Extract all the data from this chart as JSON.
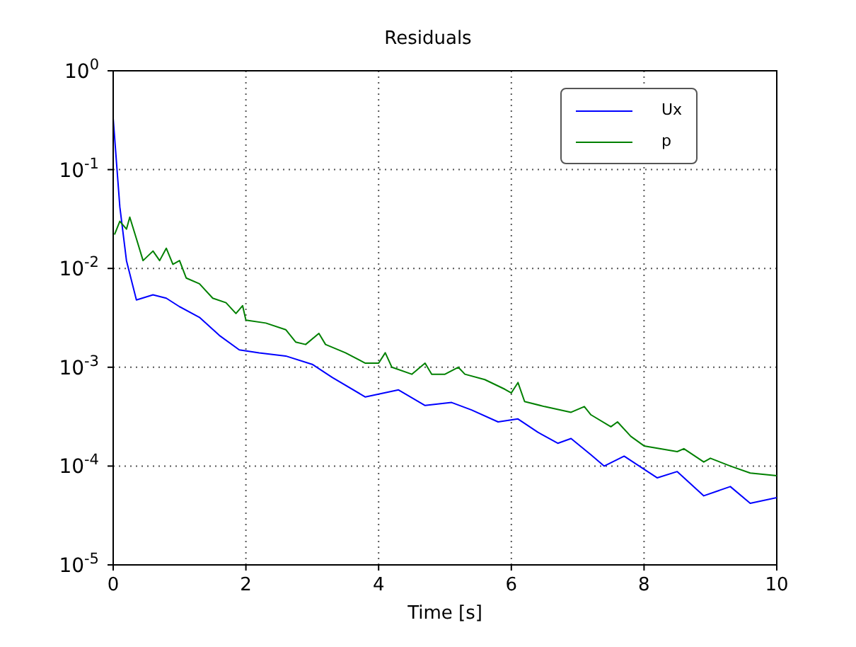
{
  "chart_data": {
    "type": "line",
    "title": "Residuals",
    "xlabel": "Time [s]",
    "log": "y",
    "grid": true,
    "legend": "top right",
    "xlim": [
      0,
      10
    ],
    "xticks": [
      0,
      2,
      4,
      6,
      8,
      10
    ],
    "ylim": [
      1e-05,
      1
    ],
    "yticks": [
      {
        "value": 1e-05,
        "label": "10$^{-5}$"
      },
      {
        "value": 0.0001,
        "label": "10$^{-4}$"
      },
      {
        "value": 0.001,
        "label": "10$^{-3}$"
      },
      {
        "value": 0.01,
        "label": "10$^{-2}$"
      },
      {
        "value": 0.1,
        "label": "10$^{-1}$"
      },
      {
        "value": 1,
        "label": "10$^{0}$"
      }
    ],
    "series": [
      {
        "name": "Ux",
        "color": "#0000ff",
        "x": [
          0,
          0.1,
          0.2,
          0.35,
          0.6,
          0.8,
          1.0,
          1.3,
          1.6,
          1.9,
          2.2,
          2.6,
          3.0,
          3.3,
          3.8,
          4.3,
          4.7,
          5.1,
          5.4,
          5.8,
          6.1,
          6.4,
          6.7,
          6.9,
          7.2,
          7.4,
          7.7,
          8.0,
          8.2,
          8.5,
          8.9,
          9.3,
          9.6,
          10
        ],
        "values": [
          0.33,
          0.042,
          0.012,
          0.0048,
          0.0054,
          0.005,
          0.0041,
          0.0032,
          0.0021,
          0.0015,
          0.0014,
          0.0013,
          0.00107,
          0.00079,
          0.0005,
          0.00059,
          0.00041,
          0.00044,
          0.00037,
          0.00028,
          0.0003,
          0.00022,
          0.00017,
          0.00019,
          0.00013,
          0.0001,
          0.000126,
          9.3e-05,
          7.6e-05,
          8.8e-05,
          5e-05,
          6.2e-05,
          4.2e-05,
          4.8e-05
        ]
      },
      {
        "name": "p",
        "color": "#008000",
        "x": [
          0.02,
          0.1,
          0.2,
          0.25,
          0.35,
          0.45,
          0.6,
          0.7,
          0.8,
          0.9,
          1.0,
          1.1,
          1.3,
          1.5,
          1.7,
          1.85,
          1.95,
          2.0,
          2.3,
          2.6,
          2.75,
          2.9,
          3.1,
          3.2,
          3.5,
          3.8,
          4.0,
          4.1,
          4.2,
          4.5,
          4.7,
          4.8,
          5.0,
          5.2,
          5.3,
          5.6,
          5.9,
          6.0,
          6.1,
          6.2,
          6.5,
          6.9,
          7.1,
          7.2,
          7.5,
          7.6,
          7.8,
          8.0,
          8.5,
          8.6,
          8.9,
          9.0,
          9.3,
          9.6,
          10
        ],
        "values": [
          0.022,
          0.03,
          0.025,
          0.033,
          0.02,
          0.012,
          0.015,
          0.012,
          0.016,
          0.011,
          0.012,
          0.008,
          0.007,
          0.005,
          0.0045,
          0.0035,
          0.0042,
          0.003,
          0.0028,
          0.0024,
          0.0018,
          0.0017,
          0.0022,
          0.0017,
          0.0014,
          0.0011,
          0.0011,
          0.0014,
          0.001,
          0.00085,
          0.0011,
          0.00085,
          0.00085,
          0.001,
          0.00085,
          0.00075,
          0.0006,
          0.00055,
          0.0007,
          0.00045,
          0.0004,
          0.00035,
          0.0004,
          0.00033,
          0.00025,
          0.00028,
          0.0002,
          0.00016,
          0.00014,
          0.00015,
          0.00011,
          0.00012,
          0.0001,
          8.5e-05,
          8e-05
        ]
      }
    ]
  }
}
